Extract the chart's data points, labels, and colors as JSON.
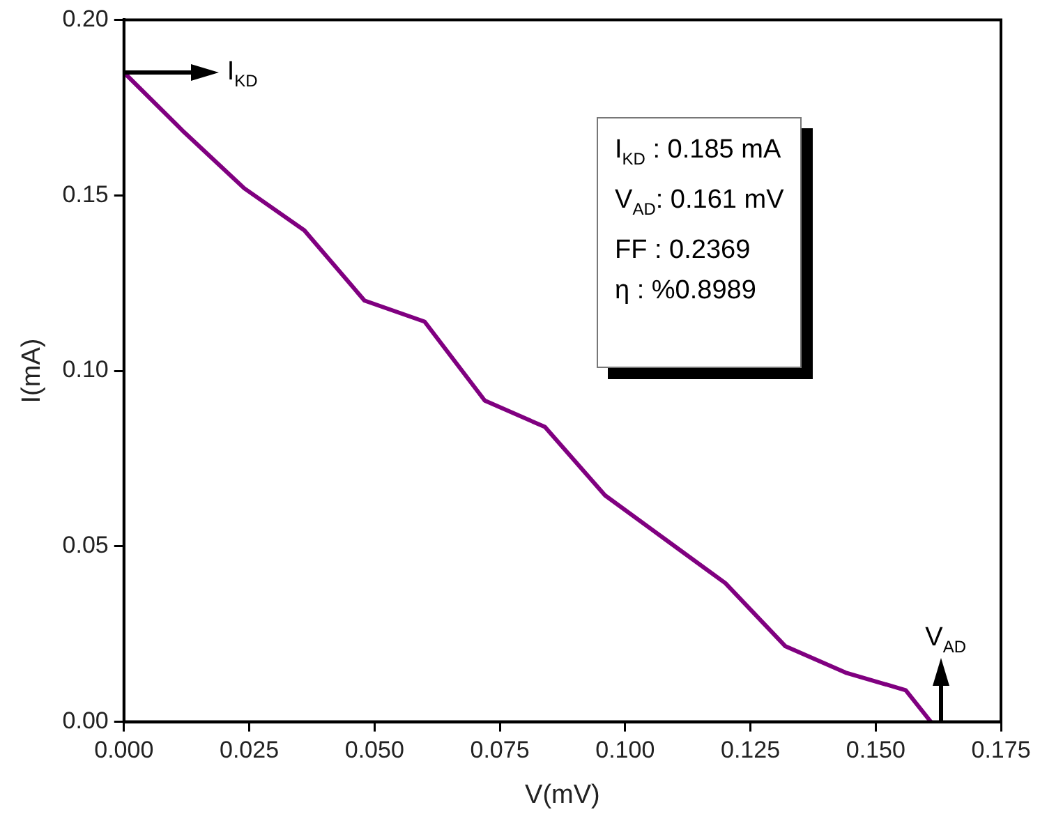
{
  "chart_data": {
    "type": "line",
    "xlabel": "V(mV)",
    "ylabel": "I(mA)",
    "x": [
      0,
      0.012,
      0.024,
      0.036,
      0.048,
      0.06,
      0.072,
      0.084,
      0.096,
      0.108,
      0.12,
      0.132,
      0.144,
      0.156,
      0.161
    ],
    "series": [
      {
        "color": "#800080",
        "values": [
          0.185,
          0.168,
          0.152,
          0.14,
          0.12,
          0.114,
          0.0915,
          0.084,
          0.0645,
          0.052,
          0.0395,
          0.0215,
          0.014,
          0.009,
          0
        ]
      }
    ],
    "xlim": [
      0,
      0.175
    ],
    "ylim": [
      0,
      0.2
    ],
    "xticks": [
      {
        "value": 0,
        "label": "0.000"
      },
      {
        "value": 0.025,
        "label": "0.025"
      },
      {
        "value": 0.05,
        "label": "0.050"
      },
      {
        "value": 0.075,
        "label": "0.075"
      },
      {
        "value": 0.1,
        "label": "0.100"
      },
      {
        "value": 0.125,
        "label": "0.125"
      },
      {
        "value": 0.15,
        "label": "0.150"
      },
      {
        "value": 0.175,
        "label": "0.175"
      }
    ],
    "yticks": [
      {
        "value": 0,
        "label": "0.00"
      },
      {
        "value": 0.05,
        "label": "0.05"
      },
      {
        "value": 0.1,
        "label": "0.10"
      },
      {
        "value": 0.15,
        "label": "0.15"
      },
      {
        "value": 0.2,
        "label": "0.20"
      }
    ],
    "grid": false,
    "legend": false,
    "marker": "none",
    "line_style": "solid",
    "annotations": [
      {
        "text": "I$_{KD}$",
        "x": 0,
        "y": 0.185
      },
      "V$_{AD}$",
      "I$_{KD}$ : 0.185 mA",
      "V$_{AD}$: 0.161 mV",
      "FF : 0.2369",
      "η : %0.8989"
    ]
  }
}
